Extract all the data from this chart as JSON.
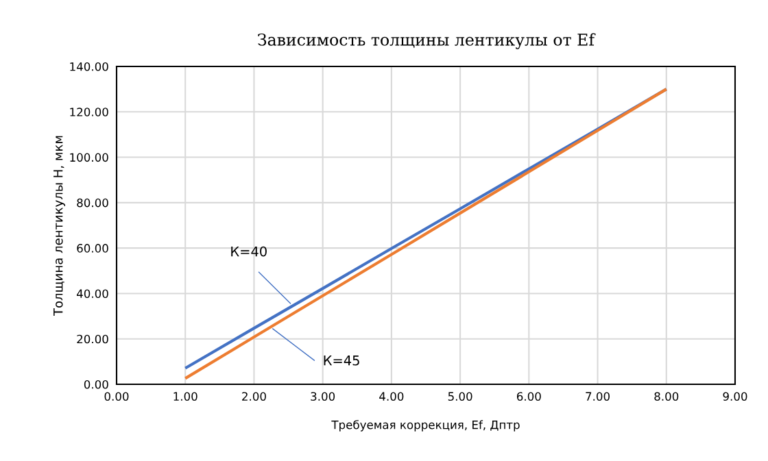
{
  "chart_data": {
    "type": "line",
    "title": "Зависимость толщины лентикулы от Ef",
    "xlabel": "Требуемая коррекция, Ef, Дптр",
    "ylabel": "Толщина лентикулы H, мкм",
    "x": [
      1,
      2,
      3,
      4,
      5,
      6,
      7,
      8
    ],
    "series": [
      {
        "color": "#4472c4",
        "values": [
          7.1,
          24.7,
          42.2,
          59.8,
          77.3,
          94.9,
          112.4,
          130.0
        ]
      },
      {
        "color": "#ed7d31",
        "values": [
          2.6,
          20.8,
          39.0,
          57.2,
          75.4,
          93.6,
          111.8,
          130.0
        ]
      }
    ],
    "xlim": [
      0,
      9
    ],
    "xticks": [
      {
        "value": 0,
        "label": "0.00"
      },
      {
        "value": 1,
        "label": "1.00"
      },
      {
        "value": 2,
        "label": "2.00"
      },
      {
        "value": 3,
        "label": "3.00"
      },
      {
        "value": 4,
        "label": "4.00"
      },
      {
        "value": 5,
        "label": "5.00"
      },
      {
        "value": 6,
        "label": "6.00"
      },
      {
        "value": 7,
        "label": "7.00"
      },
      {
        "value": 8,
        "label": "8.00"
      },
      {
        "value": 9,
        "label": "9.00"
      }
    ],
    "ylim": [
      0,
      140
    ],
    "yticks": [
      {
        "value": 0,
        "label": "0.00"
      },
      {
        "value": 20,
        "label": "20.00"
      },
      {
        "value": 40,
        "label": "40.00"
      },
      {
        "value": 60,
        "label": "60.00"
      },
      {
        "value": 80,
        "label": "80.00"
      },
      {
        "value": 100,
        "label": "100.00"
      },
      {
        "value": 120,
        "label": "120.00"
      },
      {
        "value": 140,
        "label": "140.00"
      }
    ],
    "grid": true,
    "marker": "none",
    "line_style": "solid",
    "annotations": [
      {
        "text": "К=40",
        "x": 2.55,
        "y": 35.0
      },
      {
        "text": "К=45",
        "x": 2.25,
        "y": 25.0
      }
    ]
  }
}
